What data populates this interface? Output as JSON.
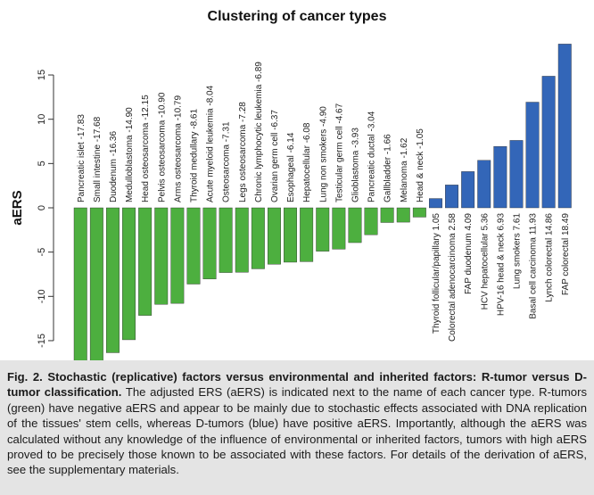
{
  "chart_data": {
    "type": "bar",
    "title": "Clustering of cancer types",
    "xlabel": "",
    "ylabel": "aERS",
    "ylim": [
      -18,
      18
    ],
    "yticks": [
      -15,
      -10,
      -5,
      0,
      5,
      10,
      15
    ],
    "grid": false,
    "colors": {
      "R": "#4daf3f",
      "D": "#3366b8"
    },
    "bars": [
      {
        "label": "Pancreatic islet",
        "value": -17.83,
        "group": "R"
      },
      {
        "label": "Small intestine",
        "value": -17.68,
        "group": "R"
      },
      {
        "label": "Duodenum",
        "value": -16.36,
        "group": "R"
      },
      {
        "label": "Medulloblastoma",
        "value": -14.9,
        "group": "R"
      },
      {
        "label": "Head osteosarcoma",
        "value": -12.15,
        "group": "R"
      },
      {
        "label": "Pelvis osteosarcoma",
        "value": -10.9,
        "group": "R"
      },
      {
        "label": "Arms osteosarcoma",
        "value": -10.79,
        "group": "R"
      },
      {
        "label": "Thyroid medullary",
        "value": -8.61,
        "group": "R"
      },
      {
        "label": "Acute myeloid leukemia",
        "value": -8.04,
        "group": "R"
      },
      {
        "label": "Osteosarcoma",
        "value": -7.31,
        "group": "R"
      },
      {
        "label": "Legs osteosarcoma",
        "value": -7.28,
        "group": "R"
      },
      {
        "label": "Chronic lymphocytic leukemia",
        "value": -6.89,
        "group": "R"
      },
      {
        "label": "Ovarian germ cell",
        "value": -6.37,
        "group": "R"
      },
      {
        "label": "Esophageal",
        "value": -6.14,
        "group": "R"
      },
      {
        "label": "Hepatocellular",
        "value": -6.08,
        "group": "R"
      },
      {
        "label": "Lung non smokers",
        "value": -4.9,
        "group": "R"
      },
      {
        "label": "Testicular germ cell",
        "value": -4.67,
        "group": "R"
      },
      {
        "label": "Glioblastoma",
        "value": -3.93,
        "group": "R"
      },
      {
        "label": "Pancreatic ductal",
        "value": -3.04,
        "group": "R"
      },
      {
        "label": "Gallbladder",
        "value": -1.66,
        "group": "R"
      },
      {
        "label": "Melanoma",
        "value": -1.62,
        "group": "R"
      },
      {
        "label": "Head & neck",
        "value": -1.05,
        "group": "R"
      },
      {
        "label": "Thyroid follicular/papillary",
        "value": 1.05,
        "group": "D"
      },
      {
        "label": "Colorectal adenocarcinoma",
        "value": 2.58,
        "group": "D"
      },
      {
        "label": "FAP duodenum",
        "value": 4.09,
        "group": "D"
      },
      {
        "label": "HCV hepatocellular",
        "value": 5.36,
        "group": "D"
      },
      {
        "label": "HPV-16 head & neck",
        "value": 6.93,
        "group": "D"
      },
      {
        "label": "Lung smokers",
        "value": 7.61,
        "group": "D"
      },
      {
        "label": "Basal cell carcinoma",
        "value": 11.93,
        "group": "D"
      },
      {
        "label": "Lynch colorectal",
        "value": 14.86,
        "group": "D"
      },
      {
        "label": "FAP colorectal",
        "value": 18.49,
        "group": "D"
      }
    ]
  },
  "caption": {
    "lead": "Fig. 2. Stochastic (replicative) factors versus environmental and inherited factors: R-tumor versus D-tumor classification.",
    "body": " The adjusted ERS (aERS) is indicated next to the name of each cancer type. R-tumors (green) have negative aERS and appear to be mainly due to stochastic effects associated with DNA replication of the tissues' stem cells, whereas D-tumors (blue) have positive aERS. Importantly, although the aERS was calculated without any knowledge of the influence of environmental or inherited factors, tumors with high aERS proved to be precisely those known to be associated with these factors. For details of the derivation of aERS, see the supplementary materials."
  }
}
